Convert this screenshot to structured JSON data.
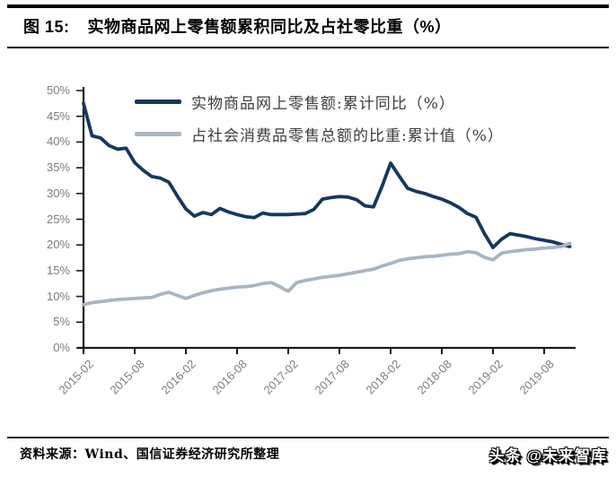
{
  "header": {
    "title_prefix": "图 15:",
    "title": "实物商品网上零售额累积同比及占社零比重（%）"
  },
  "footer": {
    "source": "资料来源：Wind、国信证券经济研究所整理",
    "watermark": "头条 @未来智库"
  },
  "chart_data": {
    "type": "line",
    "title": "实物商品网上零售额累积同比及占社零比重（%）",
    "xlabel": "",
    "ylabel": "",
    "ylim": [
      0,
      50
    ],
    "grid": false,
    "legend_position": "upper-left-inside",
    "y_tick_labels": [
      "0%",
      "5%",
      "10%",
      "15%",
      "20%",
      "25%",
      "30%",
      "35%",
      "40%",
      "45%",
      "50%"
    ],
    "x_tick_labels": [
      "2015-02",
      "2015-08",
      "2016-02",
      "2016-08",
      "2017-02",
      "2017-08",
      "2018-02",
      "2018-08",
      "2019-02",
      "2019-08"
    ],
    "x_months": [
      "2015-02",
      "2015-03",
      "2015-04",
      "2015-05",
      "2015-06",
      "2015-07",
      "2015-08",
      "2015-09",
      "2015-10",
      "2015-11",
      "2015-12",
      "2016-01",
      "2016-02",
      "2016-03",
      "2016-04",
      "2016-05",
      "2016-06",
      "2016-07",
      "2016-08",
      "2016-09",
      "2016-10",
      "2016-11",
      "2016-12",
      "2017-01",
      "2017-02",
      "2017-03",
      "2017-04",
      "2017-05",
      "2017-06",
      "2017-07",
      "2017-08",
      "2017-09",
      "2017-10",
      "2017-11",
      "2017-12",
      "2018-01",
      "2018-02",
      "2018-03",
      "2018-04",
      "2018-05",
      "2018-06",
      "2018-07",
      "2018-08",
      "2018-09",
      "2018-10",
      "2018-11",
      "2018-12",
      "2019-01",
      "2019-02",
      "2019-03",
      "2019-04",
      "2019-05",
      "2019-06",
      "2019-07",
      "2019-08",
      "2019-09",
      "2019-10",
      "2019-11"
    ],
    "series": [
      {
        "name": "实物商品网上零售额:累计同比（%）",
        "color": "#17375e",
        "values": [
          47.5,
          41.2,
          40.8,
          39.3,
          38.6,
          38.8,
          36.0,
          34.5,
          33.3,
          33.0,
          32.2,
          29.5,
          27.0,
          25.6,
          26.3,
          25.9,
          27.1,
          26.4,
          25.9,
          25.5,
          25.3,
          26.2,
          25.9,
          25.9,
          25.9,
          26.0,
          26.1,
          26.9,
          28.9,
          29.2,
          29.4,
          29.3,
          28.8,
          27.6,
          27.4,
          31.4,
          35.9,
          33.4,
          31.0,
          30.4,
          30.0,
          29.4,
          28.9,
          28.2,
          27.3,
          26.1,
          25.4,
          22.2,
          19.5,
          21.1,
          22.2,
          21.9,
          21.6,
          21.2,
          20.9,
          20.6,
          20.1,
          19.7
        ]
      },
      {
        "name": "占社会消费品零售总额的比重:累计值（%）",
        "color": "#a9b5c2",
        "values": [
          8.4,
          8.8,
          9.0,
          9.2,
          9.4,
          9.5,
          9.6,
          9.7,
          9.8,
          10.4,
          10.8,
          10.2,
          9.6,
          10.2,
          10.7,
          11.1,
          11.4,
          11.6,
          11.8,
          11.9,
          12.1,
          12.5,
          12.7,
          11.9,
          11.0,
          12.7,
          13.1,
          13.4,
          13.7,
          13.9,
          14.1,
          14.4,
          14.7,
          15.0,
          15.3,
          15.9,
          16.4,
          17.0,
          17.3,
          17.5,
          17.7,
          17.8,
          18.0,
          18.2,
          18.3,
          18.7,
          18.5,
          17.6,
          17.1,
          18.4,
          18.7,
          18.9,
          19.1,
          19.2,
          19.4,
          19.5,
          19.7,
          20.3
        ]
      }
    ]
  }
}
